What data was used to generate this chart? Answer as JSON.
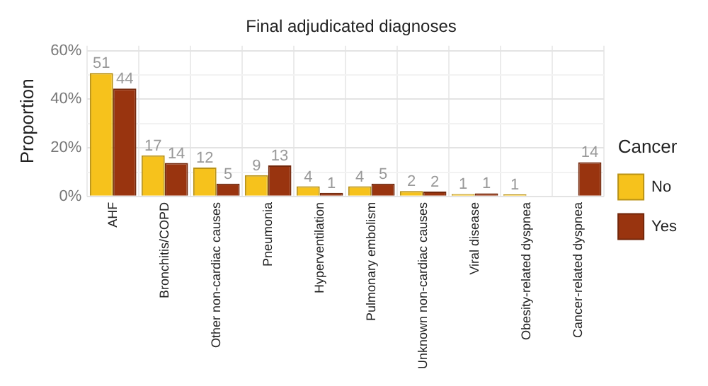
{
  "chart_data": {
    "type": "bar",
    "title": "Final adjudicated diagnoses",
    "ylabel": "Proportion",
    "legend_title": "Cancer",
    "legend": "right",
    "categories": [
      "AHF",
      "Bronchitis/COPD",
      "Other non-cardiac causes",
      "Pneumonia",
      "Hyperventilation",
      "Pulmonary embolism",
      "Unknown non-cardiac causes",
      "Viral disease",
      "Obesity-related dyspnea",
      "Cancer-related dyspnea"
    ],
    "series": [
      {
        "name": "No",
        "color": "#f6c21c",
        "values": [
          50.8,
          16.9,
          11.9,
          8.8,
          4.2,
          4.2,
          2.2,
          1.0,
          0.8,
          null
        ],
        "value_labels": [
          "51",
          "17",
          "12",
          "9",
          "4",
          "4",
          "2",
          "1",
          "1",
          null
        ]
      },
      {
        "name": "Yes",
        "color": "#99340f",
        "values": [
          44.4,
          13.8,
          5.3,
          12.8,
          1.5,
          5.3,
          2.0,
          1.3,
          null,
          14.1
        ],
        "value_labels": [
          "44",
          "14",
          "5",
          "13",
          "1",
          "5",
          "2",
          "1",
          null,
          "14"
        ]
      }
    ],
    "ylim": [
      0,
      62
    ],
    "yticks": [
      {
        "value": 0,
        "label": "0%"
      },
      {
        "value": 10,
        "label": null
      },
      {
        "value": 20,
        "label": "20%"
      },
      {
        "value": 30,
        "label": null
      },
      {
        "value": 40,
        "label": "40%"
      },
      {
        "value": 50,
        "label": null
      },
      {
        "value": 60,
        "label": "60%"
      }
    ],
    "grid": true
  }
}
